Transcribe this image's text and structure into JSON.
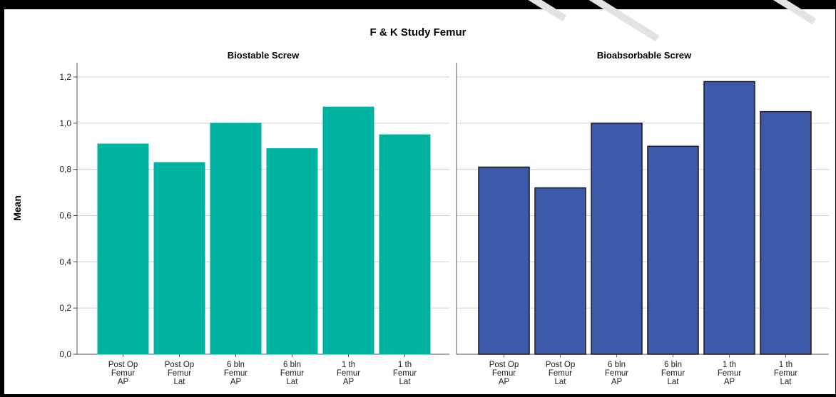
{
  "chart_data": {
    "type": "bar",
    "title": "F & K Study Femur",
    "ylabel": "Mean",
    "xlabel": "",
    "ylim": [
      0,
      1.2
    ],
    "yticks": [
      "0,0",
      "0,2",
      "0,4",
      "0,6",
      "0,8",
      "1,0",
      "1,2"
    ],
    "ytick_values": [
      0,
      0.2,
      0.4,
      0.6,
      0.8,
      1.0,
      1.2
    ],
    "grid": true,
    "categories": [
      [
        "Post Op",
        "Femur",
        "AP"
      ],
      [
        "Post Op",
        "Femur",
        "Lat"
      ],
      [
        "6 bln",
        "Femur",
        "AP"
      ],
      [
        "6 bln",
        "Femur",
        "Lat"
      ],
      [
        "1 th",
        "Femur",
        "AP"
      ],
      [
        "1 th",
        "Femur",
        "Lat"
      ]
    ],
    "panels": [
      {
        "title": "Biostable Screw",
        "color": "#00b2a0",
        "outline": "#00b2a0",
        "values": [
          0.91,
          0.83,
          1.0,
          0.89,
          1.07,
          0.95
        ]
      },
      {
        "title": "Bioabsorbable Screw",
        "color": "#3d5aa8",
        "outline": "#1a1a1a",
        "values": [
          0.81,
          0.72,
          1.0,
          0.9,
          1.18,
          1.05
        ]
      }
    ]
  }
}
